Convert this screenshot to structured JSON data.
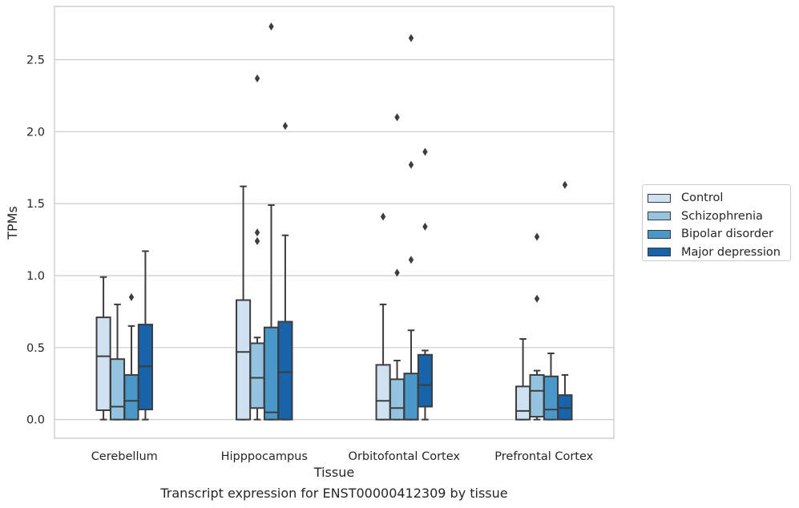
{
  "chart_data": {
    "type": "box",
    "title": "",
    "caption": "Transcript expression for ENST00000412309 by tissue",
    "xlabel": "Tissue",
    "ylabel": "TPMs",
    "ylim": [
      -0.13,
      2.87
    ],
    "yticks": [
      "0.0",
      "0.5",
      "1.0",
      "1.5",
      "2.0",
      "2.5"
    ],
    "ytick_values": [
      0.0,
      0.5,
      1.0,
      1.5,
      2.0,
      2.5
    ],
    "grid": "horizontal",
    "legend_position": "right",
    "categories": [
      "Cerebellum",
      "Hipppocampus",
      "Orbitofontal Cortex",
      "Prefrontal Cortex"
    ],
    "series": [
      {
        "name": "Control",
        "color": "#d0e1f2",
        "boxes": [
          {
            "whislo": 0.0,
            "q1": 0.065,
            "med": 0.44,
            "q3": 0.71,
            "whishi": 0.99,
            "fliers": []
          },
          {
            "whislo": 0.0,
            "q1": 0.0,
            "med": 0.47,
            "q3": 0.83,
            "whishi": 1.62,
            "fliers": []
          },
          {
            "whislo": 0.0,
            "q1": 0.0,
            "med": 0.13,
            "q3": 0.38,
            "whishi": 0.8,
            "fliers": [
              1.41
            ]
          },
          {
            "whislo": 0.0,
            "q1": 0.0,
            "med": 0.06,
            "q3": 0.23,
            "whishi": 0.56,
            "fliers": []
          }
        ]
      },
      {
        "name": "Schizophrenia",
        "color": "#94c4df",
        "boxes": [
          {
            "whislo": 0.0,
            "q1": 0.0,
            "med": 0.09,
            "q3": 0.42,
            "whishi": 0.8,
            "fliers": []
          },
          {
            "whislo": 0.0,
            "q1": 0.08,
            "med": 0.29,
            "q3": 0.53,
            "whishi": 0.57,
            "fliers": [
              1.24,
              1.3,
              2.37
            ]
          },
          {
            "whislo": 0.0,
            "q1": 0.0,
            "med": 0.08,
            "q3": 0.28,
            "whishi": 0.41,
            "fliers": [
              1.02,
              2.1
            ]
          },
          {
            "whislo": 0.0,
            "q1": 0.02,
            "med": 0.2,
            "q3": 0.31,
            "whishi": 0.34,
            "fliers": [
              0.84,
              1.27
            ]
          }
        ]
      },
      {
        "name": "Bipolar disorder",
        "color": "#4a98c9",
        "boxes": [
          {
            "whislo": 0.0,
            "q1": 0.0,
            "med": 0.13,
            "q3": 0.31,
            "whishi": 0.65,
            "fliers": [
              0.85
            ]
          },
          {
            "whislo": 0.0,
            "q1": 0.0,
            "med": 0.05,
            "q3": 0.64,
            "whishi": 1.49,
            "fliers": [
              2.73
            ]
          },
          {
            "whislo": 0.0,
            "q1": 0.0,
            "med": 0.0,
            "q3": 0.32,
            "whishi": 0.62,
            "fliers": [
              1.11,
              1.77,
              2.65
            ]
          },
          {
            "whislo": 0.0,
            "q1": 0.0,
            "med": 0.07,
            "q3": 0.3,
            "whishi": 0.46,
            "fliers": []
          }
        ]
      },
      {
        "name": "Major depression",
        "color": "#1764ab",
        "boxes": [
          {
            "whislo": 0.0,
            "q1": 0.07,
            "med": 0.37,
            "q3": 0.66,
            "whishi": 1.17,
            "fliers": []
          },
          {
            "whislo": 0.0,
            "q1": 0.0,
            "med": 0.33,
            "q3": 0.68,
            "whishi": 1.28,
            "fliers": [
              2.04
            ]
          },
          {
            "whislo": 0.0,
            "q1": 0.09,
            "med": 0.24,
            "q3": 0.45,
            "whishi": 0.48,
            "fliers": [
              1.34,
              1.86
            ]
          },
          {
            "whislo": 0.0,
            "q1": 0.0,
            "med": 0.08,
            "q3": 0.17,
            "whishi": 0.31,
            "fliers": [
              1.63
            ]
          }
        ]
      }
    ]
  }
}
